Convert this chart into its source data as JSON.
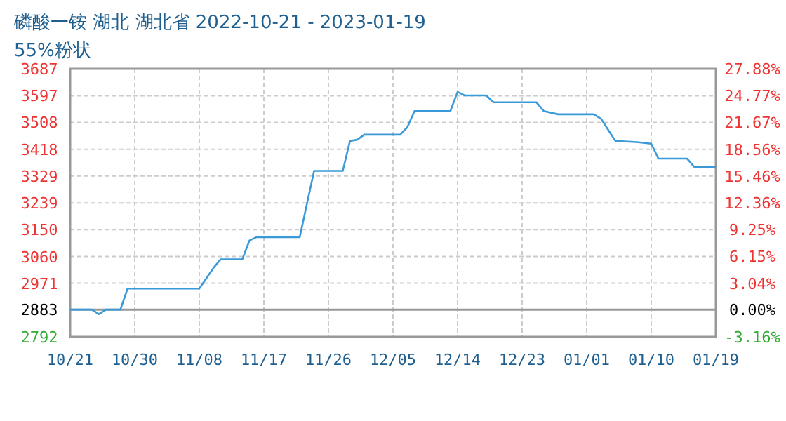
{
  "chart_data": {
    "type": "line",
    "title": "磷酸一铵 湖北 湖北省 2022-10-21 - 2023-01-19",
    "subtitle": "55%粉状",
    "x": [
      "2022-10-21",
      "2022-10-24",
      "2022-10-25",
      "2022-10-26",
      "2022-10-28",
      "2022-10-29",
      "2022-11-08",
      "2022-11-10",
      "2022-11-11",
      "2022-11-14",
      "2022-11-15",
      "2022-11-16",
      "2022-11-22",
      "2022-11-24",
      "2022-11-28",
      "2022-11-29",
      "2022-11-30",
      "2022-12-01",
      "2022-12-06",
      "2022-12-07",
      "2022-12-08",
      "2022-12-13",
      "2022-12-14",
      "2022-12-15",
      "2022-12-18",
      "2022-12-19",
      "2022-12-25",
      "2022-12-26",
      "2022-12-28",
      "2023-01-02",
      "2023-01-03",
      "2023-01-05",
      "2023-01-08",
      "2023-01-10",
      "2023-01-11",
      "2023-01-15",
      "2023-01-16",
      "2023-01-19"
    ],
    "series": [
      {
        "color": "#3a9ad9",
        "values": [
          2883,
          2883,
          2868,
          2883,
          2883,
          2953,
          2953,
          3023,
          3051,
          3051,
          3114,
          3125,
          3125,
          3346,
          3346,
          3446,
          3450,
          3467,
          3467,
          3492,
          3546,
          3546,
          3610,
          3598,
          3598,
          3575,
          3575,
          3546,
          3535,
          3535,
          3520,
          3446,
          3442,
          3437,
          3387,
          3387,
          3359,
          3359
        ]
      }
    ],
    "xlim": [
      "2022-10-21",
      "2023-01-19"
    ],
    "xticks": [
      {
        "value": "2022-10-21",
        "label": "10/21"
      },
      {
        "value": "2022-10-30",
        "label": "10/30"
      },
      {
        "value": "2022-11-08",
        "label": "11/08"
      },
      {
        "value": "2022-11-17",
        "label": "11/17"
      },
      {
        "value": "2022-11-26",
        "label": "11/26"
      },
      {
        "value": "2022-12-05",
        "label": "12/05"
      },
      {
        "value": "2022-12-14",
        "label": "12/14"
      },
      {
        "value": "2022-12-23",
        "label": "12/23"
      },
      {
        "value": "2023-01-01",
        "label": "01/01"
      },
      {
        "value": "2023-01-10",
        "label": "01/10"
      },
      {
        "value": "2023-01-19",
        "label": "01/19"
      }
    ],
    "ylim": [
      2792,
      3687
    ],
    "yticks": [
      2792,
      2883,
      2971,
      3060,
      3150,
      3239,
      3329,
      3418,
      3508,
      3597,
      3687
    ],
    "y2lim": [
      -3.16,
      27.88
    ],
    "y2ticks": [
      {
        "value": -3.16,
        "label": "-3.16%"
      },
      {
        "value": 0,
        "label": "0.00%"
      },
      {
        "value": 3.04,
        "label": "3.04%"
      },
      {
        "value": 6.15,
        "label": "6.15%"
      },
      {
        "value": 9.25,
        "label": "9.25%"
      },
      {
        "value": 12.36,
        "label": "12.36%"
      },
      {
        "value": 15.46,
        "label": "15.46%"
      },
      {
        "value": 18.56,
        "label": "18.56%"
      },
      {
        "value": 21.67,
        "label": "21.67%"
      },
      {
        "value": 24.77,
        "label": "24.77%"
      },
      {
        "value": 27.88,
        "label": "27.88%"
      }
    ],
    "ref_lines": [
      {
        "axis": "y",
        "value": 2883,
        "color": "#999999"
      }
    ],
    "grid": true,
    "marker": "none",
    "line_style": "solid"
  }
}
